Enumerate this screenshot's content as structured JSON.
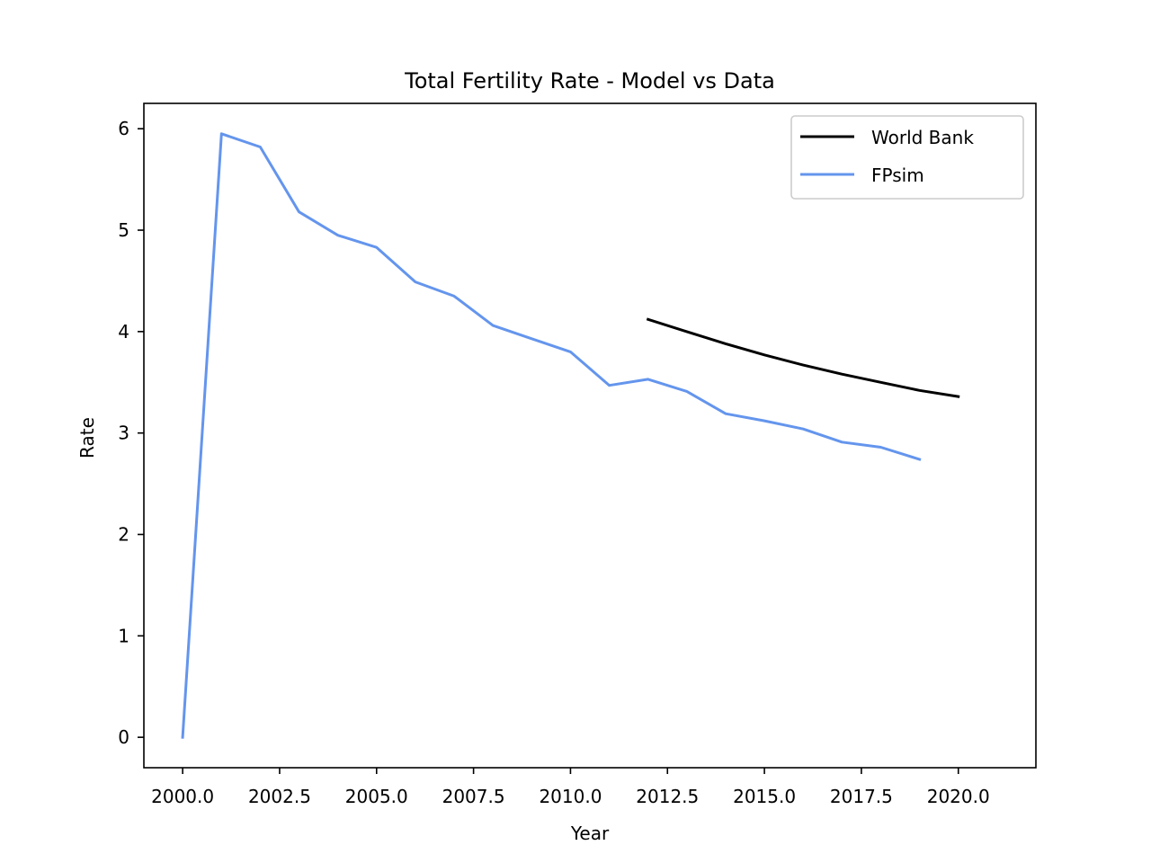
{
  "chart_data": {
    "type": "line",
    "title": "Total Fertility Rate - Model vs Data",
    "xlabel": "Year",
    "ylabel": "Rate",
    "xlim": [
      1999.0,
      2022.0
    ],
    "ylim": [
      -0.3,
      6.25
    ],
    "xticks": [
      2000.0,
      2002.5,
      2005.0,
      2007.5,
      2010.0,
      2012.5,
      2015.0,
      2017.5,
      2020.0
    ],
    "xtick_labels": [
      "2000.0",
      "2002.5",
      "2005.0",
      "2007.5",
      "2010.0",
      "2012.5",
      "2015.0",
      "2017.5",
      "2020.0"
    ],
    "yticks": [
      0,
      1,
      2,
      3,
      4,
      5,
      6
    ],
    "ytick_labels": [
      "0",
      "1",
      "2",
      "3",
      "4",
      "5",
      "6"
    ],
    "grid": false,
    "legend_position": "top-right",
    "series": [
      {
        "name": "World Bank",
        "color": "#000000",
        "x": [
          2012,
          2013,
          2014,
          2015,
          2016,
          2017,
          2018,
          2019,
          2020
        ],
        "y": [
          4.12,
          4.0,
          3.88,
          3.77,
          3.67,
          3.58,
          3.5,
          3.42,
          3.36
        ]
      },
      {
        "name": "FPsim",
        "color": "#6495ed",
        "x": [
          2000,
          2001,
          2002,
          2003,
          2004,
          2005,
          2006,
          2007,
          2008,
          2009,
          2010,
          2011,
          2012,
          2013,
          2014,
          2015,
          2016,
          2017,
          2018,
          2019
        ],
        "y": [
          0.0,
          5.95,
          5.82,
          5.18,
          4.95,
          4.83,
          4.49,
          4.35,
          4.06,
          3.93,
          3.8,
          3.47,
          3.53,
          3.41,
          3.19,
          3.12,
          3.04,
          2.91,
          2.86,
          2.74
        ]
      }
    ]
  }
}
